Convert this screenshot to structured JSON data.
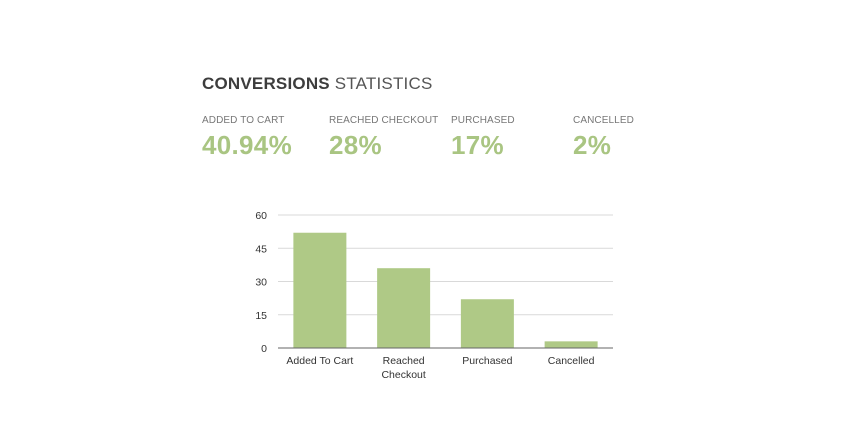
{
  "header": {
    "title_strong": "CONVERSIONS",
    "title_light": "STATISTICS"
  },
  "stats": [
    {
      "label": "ADDED TO CART",
      "value": "40.94%"
    },
    {
      "label": "REACHED CHECKOUT",
      "value": "28%"
    },
    {
      "label": "PURCHASED",
      "value": "17%"
    },
    {
      "label": "CANCELLED",
      "value": "2%"
    }
  ],
  "colors": {
    "accent": "#a9c582",
    "bar": "#afc986",
    "grid": "#d9d9d9",
    "axis": "#666666",
    "text": "#333333"
  },
  "chart_data": {
    "type": "bar",
    "categories": [
      "Added To Cart",
      "Reached Checkout",
      "Purchased",
      "Cancelled"
    ],
    "category_lines": [
      [
        "Added To Cart"
      ],
      [
        "Reached",
        "Checkout"
      ],
      [
        "Purchased"
      ],
      [
        "Cancelled"
      ]
    ],
    "values": [
      52,
      36,
      22,
      3
    ],
    "ylim": [
      0,
      60
    ],
    "yticks": [
      0,
      15,
      30,
      45,
      60
    ],
    "grid": true,
    "title": "",
    "xlabel": "",
    "ylabel": ""
  }
}
